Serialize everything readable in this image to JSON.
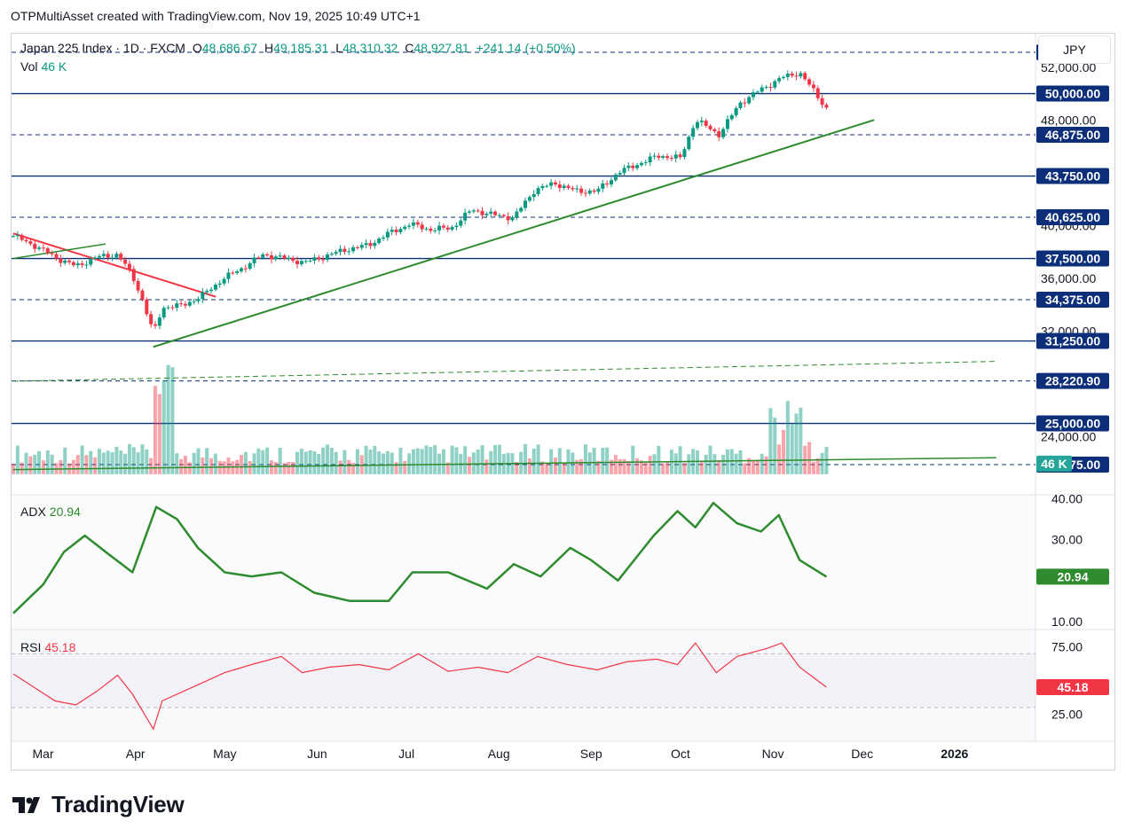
{
  "header": {
    "title": "OTPMultiAsset created with TradingView.com, Nov 19, 2025 10:49 UTC+1"
  },
  "legend": {
    "symbol": "Japan 225 Index · 1D · FXCM",
    "open_label": "O",
    "open": "48,686.67",
    "high_label": "H",
    "high": "49,185.31",
    "low_label": "L",
    "low": "48,310.32",
    "close_label": "C",
    "close": "48,927.81",
    "change": "+241.14 (+0.50%)",
    "vol_label": "Vol",
    "vol": "46 K",
    "adx_label": "ADX",
    "adx": "20.94",
    "rsi_label": "RSI",
    "rsi": "45.18"
  },
  "currency": "JPY",
  "brand": "TradingView",
  "colors": {
    "up": "#089981",
    "down": "#f23645",
    "level": "#0d2f7a",
    "trend": "#2e8b2e",
    "adx": "#2e8b2e",
    "rsi": "#f23645",
    "redline": "#f23645"
  },
  "chart_data": [
    {
      "type": "candlestick",
      "title": "Japan 225 Index · 1D · FXCM",
      "xlabel": "",
      "ylabel": "",
      "x_ticks": [
        "Mar",
        "Apr",
        "May",
        "Jun",
        "Jul",
        "Aug",
        "Sep",
        "Oct",
        "Nov",
        "Dec",
        "2026"
      ],
      "y_ticks": [
        "52,000.00",
        "48,000.00",
        "40,000.00",
        "36,000.00",
        "32,000.00",
        "24,000.00"
      ],
      "ylim": [
        20400,
        54000
      ],
      "horizontal_levels": [
        {
          "value": 53125,
          "label": "53,125.00",
          "style": "dashed"
        },
        {
          "value": 50000,
          "label": "50,000.00",
          "style": "solid"
        },
        {
          "value": 46875,
          "label": "46,875.00",
          "style": "dashed"
        },
        {
          "value": 43750,
          "label": "43,750.00",
          "style": "solid"
        },
        {
          "value": 40625,
          "label": "40,625.00",
          "style": "dashed"
        },
        {
          "value": 37500,
          "label": "37,500.00",
          "style": "solid"
        },
        {
          "value": 34375,
          "label": "34,375.00",
          "style": "dashed"
        },
        {
          "value": 31250,
          "label": "31,250.00",
          "style": "solid"
        },
        {
          "value": 28220.9,
          "label": "28,220.90",
          "style": "dashed"
        },
        {
          "value": 25000,
          "label": "25,000.00",
          "style": "solid"
        },
        {
          "value": 21875,
          "label": "21,875.00",
          "style": "dashed"
        }
      ],
      "trendlines": [
        {
          "name": "uptrend",
          "points": [
            [
              "2025-04-07",
              30800
            ],
            [
              "2025-12-05",
              48000
            ]
          ]
        },
        {
          "name": "downtrend",
          "points": [
            [
              "2025-02-19",
              39400
            ],
            [
              "2025-04-28",
              34600
            ]
          ]
        },
        {
          "name": "early channel",
          "points": [
            [
              "2025-02-19",
              37500
            ],
            [
              "2025-03-22",
              38600
            ]
          ]
        },
        {
          "name": "volume trend",
          "points": [
            [
              "2025-02-19",
              21500
            ],
            [
              "2026-01-15",
              22400
            ]
          ]
        },
        {
          "name": "dotted trend",
          "points": [
            [
              "2025-02-19",
              28200
            ],
            [
              "2026-01-15",
              29700
            ]
          ]
        }
      ],
      "close_series": [
        [
          "2025-02-19",
          39200
        ],
        [
          "2025-02-26",
          38500
        ],
        [
          "2025-03-05",
          37600
        ],
        [
          "2025-03-12",
          36900
        ],
        [
          "2025-03-19",
          37600
        ],
        [
          "2025-03-26",
          37800
        ],
        [
          "2025-03-31",
          36200
        ],
        [
          "2025-04-03",
          34600
        ],
        [
          "2025-04-07",
          31800
        ],
        [
          "2025-04-10",
          33800
        ],
        [
          "2025-04-16",
          33900
        ],
        [
          "2025-04-23",
          34600
        ],
        [
          "2025-04-30",
          35900
        ],
        [
          "2025-05-07",
          36800
        ],
        [
          "2025-05-14",
          37800
        ],
        [
          "2025-05-21",
          37500
        ],
        [
          "2025-05-28",
          37200
        ],
        [
          "2025-06-04",
          37700
        ],
        [
          "2025-06-11",
          38200
        ],
        [
          "2025-06-18",
          38500
        ],
        [
          "2025-06-25",
          39400
        ],
        [
          "2025-07-02",
          40100
        ],
        [
          "2025-07-09",
          39700
        ],
        [
          "2025-07-16",
          39800
        ],
        [
          "2025-07-23",
          41200
        ],
        [
          "2025-07-30",
          40800
        ],
        [
          "2025-08-06",
          40600
        ],
        [
          "2025-08-13",
          42700
        ],
        [
          "2025-08-20",
          43200
        ],
        [
          "2025-08-27",
          42600
        ],
        [
          "2025-09-03",
          42600
        ],
        [
          "2025-09-10",
          44000
        ],
        [
          "2025-09-17",
          44700
        ],
        [
          "2025-09-24",
          45300
        ],
        [
          "2025-10-01",
          45100
        ],
        [
          "2025-10-06",
          48000
        ],
        [
          "2025-10-14",
          46900
        ],
        [
          "2025-10-21",
          49300
        ],
        [
          "2025-10-28",
          50300
        ],
        [
          "2025-11-04",
          51200
        ],
        [
          "2025-11-10",
          51600
        ],
        [
          "2025-11-14",
          50400
        ],
        [
          "2025-11-19",
          48900
        ]
      ]
    },
    {
      "type": "bar",
      "title": "Vol",
      "series": [
        {
          "name": "Vol",
          "last": "46 K"
        }
      ]
    },
    {
      "type": "line",
      "title": "ADX",
      "y_ticks": [
        "40.00",
        "30.00",
        "10.00"
      ],
      "ylim": [
        8,
        41
      ],
      "series": [
        {
          "name": "ADX",
          "values": [
            [
              "2025-02-19",
              12
            ],
            [
              "2025-03-01",
              19
            ],
            [
              "2025-03-08",
              27
            ],
            [
              "2025-03-15",
              31
            ],
            [
              "2025-03-22",
              27
            ],
            [
              "2025-03-31",
              22
            ],
            [
              "2025-04-08",
              38
            ],
            [
              "2025-04-15",
              35
            ],
            [
              "2025-04-22",
              28
            ],
            [
              "2025-05-01",
              22
            ],
            [
              "2025-05-10",
              21
            ],
            [
              "2025-05-20",
              22
            ],
            [
              "2025-05-31",
              17
            ],
            [
              "2025-06-12",
              15
            ],
            [
              "2025-06-25",
              15
            ],
            [
              "2025-07-03",
              22
            ],
            [
              "2025-07-15",
              22
            ],
            [
              "2025-07-28",
              18
            ],
            [
              "2025-08-06",
              24
            ],
            [
              "2025-08-15",
              21
            ],
            [
              "2025-08-25",
              28
            ],
            [
              "2025-09-01",
              25
            ],
            [
              "2025-09-10",
              20
            ],
            [
              "2025-09-22",
              31
            ],
            [
              "2025-09-30",
              37
            ],
            [
              "2025-10-06",
              33
            ],
            [
              "2025-10-12",
              39
            ],
            [
              "2025-10-20",
              34
            ],
            [
              "2025-10-28",
              32
            ],
            [
              "2025-11-03",
              36
            ],
            [
              "2025-11-10",
              25
            ],
            [
              "2025-11-19",
              20.94
            ]
          ]
        }
      ]
    },
    {
      "type": "line",
      "title": "RSI",
      "y_ticks": [
        "75.00",
        "25.00"
      ],
      "ylim": [
        5,
        88
      ],
      "series": [
        {
          "name": "RSI",
          "values": [
            [
              "2025-02-19",
              55
            ],
            [
              "2025-02-26",
              45
            ],
            [
              "2025-03-05",
              35
            ],
            [
              "2025-03-12",
              32
            ],
            [
              "2025-03-19",
              42
            ],
            [
              "2025-03-26",
              54
            ],
            [
              "2025-03-31",
              40
            ],
            [
              "2025-04-07",
              14
            ],
            [
              "2025-04-10",
              35
            ],
            [
              "2025-04-20",
              45
            ],
            [
              "2025-05-01",
              56
            ],
            [
              "2025-05-10",
              62
            ],
            [
              "2025-05-20",
              68
            ],
            [
              "2025-05-27",
              56
            ],
            [
              "2025-06-05",
              60
            ],
            [
              "2025-06-15",
              62
            ],
            [
              "2025-06-25",
              58
            ],
            [
              "2025-07-05",
              70
            ],
            [
              "2025-07-15",
              57
            ],
            [
              "2025-07-25",
              60
            ],
            [
              "2025-08-04",
              56
            ],
            [
              "2025-08-14",
              68
            ],
            [
              "2025-08-24",
              62
            ],
            [
              "2025-09-03",
              58
            ],
            [
              "2025-09-13",
              64
            ],
            [
              "2025-09-23",
              66
            ],
            [
              "2025-09-30",
              62
            ],
            [
              "2025-10-06",
              78
            ],
            [
              "2025-10-13",
              56
            ],
            [
              "2025-10-20",
              68
            ],
            [
              "2025-10-30",
              74
            ],
            [
              "2025-11-04",
              78
            ],
            [
              "2025-11-10",
              60
            ],
            [
              "2025-11-19",
              45.18
            ]
          ]
        }
      ]
    }
  ]
}
